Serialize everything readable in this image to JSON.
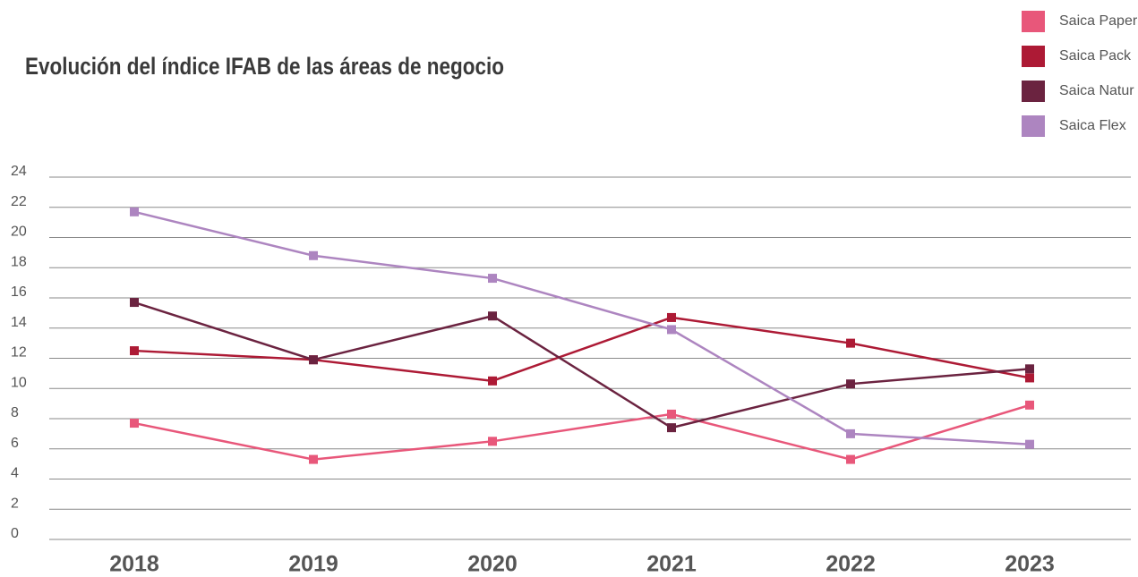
{
  "chart_data": {
    "type": "line",
    "title": "Evolución del índice IFAB de las áreas de negocio",
    "categories": [
      "2018",
      "2019",
      "2020",
      "2021",
      "2022",
      "2023"
    ],
    "series": [
      {
        "name": "Saica Paper",
        "color": "#e8577a",
        "values": [
          7.7,
          5.3,
          6.5,
          8.3,
          5.3,
          8.9
        ]
      },
      {
        "name": "Saica Pack",
        "color": "#ad1a35",
        "values": [
          12.5,
          11.9,
          10.5,
          14.7,
          13.0,
          10.7
        ]
      },
      {
        "name": "Saica Natur",
        "color": "#6b2340",
        "values": [
          15.7,
          11.9,
          14.8,
          7.4,
          10.3,
          11.3
        ]
      },
      {
        "name": "Saica Flex",
        "color": "#ad85c0",
        "values": [
          21.7,
          18.8,
          17.3,
          13.9,
          7.0,
          6.3
        ]
      }
    ],
    "ylim": [
      0,
      24
    ],
    "yticks": [
      0,
      2,
      4,
      6,
      8,
      10,
      12,
      14,
      16,
      18,
      20,
      22,
      24
    ],
    "grid": true,
    "legend": "top-right"
  }
}
